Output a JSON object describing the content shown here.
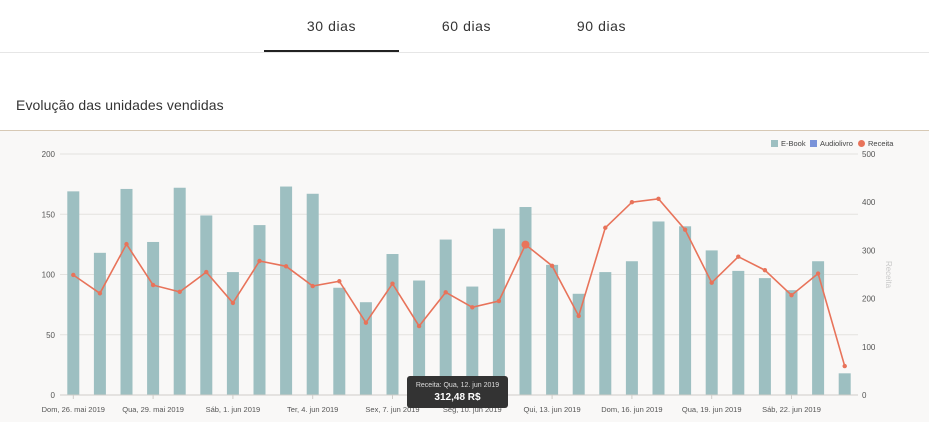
{
  "tabs": [
    {
      "label": "30 dias",
      "active": true
    },
    {
      "label": "60 dias",
      "active": false
    },
    {
      "label": "90 dias",
      "active": false
    }
  ],
  "section_title": "Evolução das unidades vendidas",
  "tooltip": {
    "label": "Receita: Qua, 12. jun 2019",
    "value": "312,48 R$"
  },
  "colors": {
    "ebook": "#9dbfc1",
    "audiolivro": "#7a93d9",
    "receita": "#e8735a"
  },
  "chart_data": {
    "type": "bar",
    "title": "",
    "legend_position": "top-right",
    "y_left": {
      "ylim": [
        0,
        200
      ],
      "ticks": [
        0,
        50,
        100,
        150,
        200
      ],
      "label": ""
    },
    "y_right": {
      "ylim": [
        0,
        500
      ],
      "ticks": [
        0,
        100,
        200,
        300,
        400,
        500
      ],
      "label": "Receita"
    },
    "x_tick_labels": [
      "Dom, 26. mai 2019",
      "Qua, 29. mai 2019",
      "Sáb, 1. jun 2019",
      "Ter, 4. jun 2019",
      "Sex, 7. jun 2019",
      "Seg, 10. jun 2019",
      "Qui, 13. jun 2019",
      "Dom, 16. jun 2019",
      "Qua, 19. jun 2019",
      "Sáb, 22. jun 2019"
    ],
    "x_tick_every": 3,
    "series": [
      {
        "name": "E-Book",
        "type": "bar",
        "axis": "left",
        "values": [
          169,
          118,
          171,
          127,
          172,
          149,
          102,
          141,
          173,
          167,
          89,
          77,
          117,
          95,
          129,
          90,
          138,
          156,
          108,
          84,
          102,
          111,
          144,
          140,
          120,
          103,
          97,
          87,
          111,
          18
        ]
      },
      {
        "name": "Audiolivro",
        "type": "bar",
        "axis": "left",
        "values": [
          0,
          0,
          0,
          0,
          0,
          0,
          0,
          0,
          0,
          0,
          0,
          0,
          0,
          0,
          0,
          0,
          0,
          0,
          0,
          0,
          0,
          0,
          0,
          0,
          0,
          0,
          0,
          0,
          0,
          0
        ]
      },
      {
        "name": "Receita",
        "type": "line",
        "axis": "right",
        "values": [
          249,
          211,
          313,
          228,
          214,
          255,
          191,
          278,
          267,
          226,
          236,
          150,
          231,
          143,
          213,
          182,
          195,
          312,
          268,
          164,
          347,
          400,
          407,
          343,
          233,
          287,
          259,
          207,
          252,
          60
        ]
      }
    ]
  }
}
